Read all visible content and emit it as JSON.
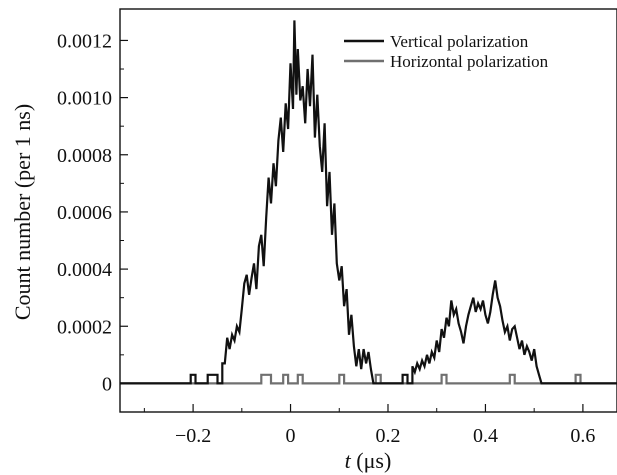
{
  "chart_data": {
    "type": "line",
    "title": "",
    "xlabel": "t (μs)",
    "xlabel_parts": {
      "var": "t",
      "unit": " (μs)"
    },
    "ylabel": "Count number (per 1 ns)",
    "xlim": [
      -0.35,
      0.67
    ],
    "ylim": [
      -0.0001,
      0.00131
    ],
    "x_ticks": [
      -0.2,
      0,
      0.2,
      0.4,
      0.6
    ],
    "x_tick_labels": [
      "−0.2",
      "0",
      "0.2",
      "0.4",
      "0.6"
    ],
    "x_minor_ticks": [
      -0.3,
      -0.1,
      0.1,
      0.3,
      0.5
    ],
    "y_ticks": [
      0,
      0.0002,
      0.0004,
      0.0006,
      0.0008,
      0.001,
      0.0012
    ],
    "y_tick_labels": [
      "0",
      "0.0002",
      "0.0004",
      "0.0006",
      "0.0008",
      "0.0010",
      "0.0012"
    ],
    "grid": false,
    "legend_position": "top-right",
    "series": [
      {
        "name": "Vertical polarization",
        "color": "#111111",
        "style": "step",
        "points": [
          [
            -0.35,
            0
          ],
          [
            -0.205,
            0
          ],
          [
            -0.205,
            3e-05
          ],
          [
            -0.195,
            3e-05
          ],
          [
            -0.195,
            0
          ],
          [
            -0.17,
            0
          ],
          [
            -0.17,
            3e-05
          ],
          [
            -0.15,
            3e-05
          ],
          [
            -0.15,
            0
          ],
          [
            -0.14,
            0
          ],
          [
            -0.14,
            7e-05
          ],
          [
            -0.135,
            7e-05
          ],
          [
            -0.13,
            0.00016
          ],
          [
            -0.125,
            0.00012
          ],
          [
            -0.12,
            0.00017
          ],
          [
            -0.115,
            0.00015
          ],
          [
            -0.11,
            0.0002
          ],
          [
            -0.105,
            0.00018
          ],
          [
            -0.1,
            0.00026
          ],
          [
            -0.095,
            0.00035
          ],
          [
            -0.09,
            0.00038
          ],
          [
            -0.085,
            0.00031
          ],
          [
            -0.08,
            0.00037
          ],
          [
            -0.075,
            0.00042
          ],
          [
            -0.07,
            0.00033
          ],
          [
            -0.065,
            0.00048
          ],
          [
            -0.06,
            0.00052
          ],
          [
            -0.055,
            0.00041
          ],
          [
            -0.05,
            0.00058
          ],
          [
            -0.045,
            0.00072
          ],
          [
            -0.04,
            0.00063
          ],
          [
            -0.035,
            0.00077
          ],
          [
            -0.03,
            0.00069
          ],
          [
            -0.025,
            0.00085
          ],
          [
            -0.02,
            0.00093
          ],
          [
            -0.015,
            0.00081
          ],
          [
            -0.01,
            0.00098
          ],
          [
            -0.005,
            0.00089
          ],
          [
            0,
            0.00112
          ],
          [
            0.005,
            0.00096
          ],
          [
            0.008,
            0.00127
          ],
          [
            0.012,
            0.00101
          ],
          [
            0.015,
            0.00117
          ],
          [
            0.02,
            0.00099
          ],
          [
            0.025,
            0.00104
          ],
          [
            0.03,
            0.00091
          ],
          [
            0.035,
            0.0011
          ],
          [
            0.04,
            0.00097
          ],
          [
            0.045,
            0.00115
          ],
          [
            0.05,
            0.00086
          ],
          [
            0.055,
            0.00101
          ],
          [
            0.06,
            0.00083
          ],
          [
            0.065,
            0.00074
          ],
          [
            0.07,
            0.00091
          ],
          [
            0.075,
            0.00062
          ],
          [
            0.08,
            0.00074
          ],
          [
            0.085,
            0.00052
          ],
          [
            0.09,
            0.00063
          ],
          [
            0.095,
            0.00042
          ],
          [
            0.1,
            0.00036
          ],
          [
            0.105,
            0.00041
          ],
          [
            0.11,
            0.00027
          ],
          [
            0.115,
            0.00033
          ],
          [
            0.12,
            0.00017
          ],
          [
            0.125,
            0.00024
          ],
          [
            0.13,
            0.00013
          ],
          [
            0.135,
            6e-05
          ],
          [
            0.14,
            0.00012
          ],
          [
            0.145,
            5e-05
          ],
          [
            0.15,
            0.00012
          ],
          [
            0.155,
            7e-05
          ],
          [
            0.16,
            0.00011
          ],
          [
            0.165,
            5e-05
          ],
          [
            0.17,
            0
          ],
          [
            0.23,
            0
          ],
          [
            0.23,
            3e-05
          ],
          [
            0.24,
            3e-05
          ],
          [
            0.24,
            0
          ],
          [
            0.25,
            0
          ],
          [
            0.25,
            6e-05
          ],
          [
            0.255,
            4e-05
          ],
          [
            0.26,
            7e-05
          ],
          [
            0.265,
            5e-05
          ],
          [
            0.27,
            8e-05
          ],
          [
            0.275,
            6e-05
          ],
          [
            0.28,
            0.0001
          ],
          [
            0.285,
            7e-05
          ],
          [
            0.29,
            0.00011
          ],
          [
            0.295,
            9e-05
          ],
          [
            0.3,
            0.00015
          ],
          [
            0.305,
            0.00011
          ],
          [
            0.31,
            0.00019
          ],
          [
            0.315,
            0.00016
          ],
          [
            0.32,
            0.00023
          ],
          [
            0.325,
            0.0002
          ],
          [
            0.33,
            0.00029
          ],
          [
            0.335,
            0.00024
          ],
          [
            0.34,
            0.00026
          ],
          [
            0.345,
            0.00021
          ],
          [
            0.35,
            0.00018
          ],
          [
            0.355,
            0.00014
          ],
          [
            0.36,
            0.0002
          ],
          [
            0.365,
            0.00024
          ],
          [
            0.37,
            0.00027
          ],
          [
            0.375,
            0.0003
          ],
          [
            0.38,
            0.00025
          ],
          [
            0.385,
            0.00028
          ],
          [
            0.39,
            0.00026
          ],
          [
            0.395,
            0.00029
          ],
          [
            0.4,
            0.00024
          ],
          [
            0.405,
            0.00021
          ],
          [
            0.41,
            0.00025
          ],
          [
            0.415,
            0.00031
          ],
          [
            0.42,
            0.00036
          ],
          [
            0.425,
            0.0003
          ],
          [
            0.43,
            0.00027
          ],
          [
            0.435,
            0.00022
          ],
          [
            0.44,
            0.00018
          ],
          [
            0.445,
            0.0002
          ],
          [
            0.45,
            0.00015
          ],
          [
            0.455,
            0.00019
          ],
          [
            0.46,
            0.0002
          ],
          [
            0.465,
            0.00016
          ],
          [
            0.47,
            0.00012
          ],
          [
            0.475,
            0.00015
          ],
          [
            0.48,
            0.0001
          ],
          [
            0.485,
            0.00013
          ],
          [
            0.49,
            0.00011
          ],
          [
            0.495,
            8e-05
          ],
          [
            0.5,
            0.00012
          ],
          [
            0.505,
            6e-05
          ],
          [
            0.51,
            3e-05
          ],
          [
            0.515,
            0
          ],
          [
            0.67,
            0
          ]
        ]
      },
      {
        "name": "Horizontal polarization",
        "color": "#707070",
        "style": "step",
        "points": [
          [
            -0.35,
            0
          ],
          [
            -0.06,
            0
          ],
          [
            -0.06,
            3e-05
          ],
          [
            -0.04,
            3e-05
          ],
          [
            -0.04,
            0
          ],
          [
            -0.015,
            0
          ],
          [
            -0.015,
            3e-05
          ],
          [
            -0.005,
            3e-05
          ],
          [
            -0.005,
            0
          ],
          [
            0.015,
            0
          ],
          [
            0.015,
            3e-05
          ],
          [
            0.025,
            3e-05
          ],
          [
            0.025,
            0
          ],
          [
            0.1,
            0
          ],
          [
            0.1,
            3e-05
          ],
          [
            0.11,
            3e-05
          ],
          [
            0.11,
            0
          ],
          [
            0.175,
            0
          ],
          [
            0.175,
            3e-05
          ],
          [
            0.185,
            3e-05
          ],
          [
            0.185,
            0
          ],
          [
            0.31,
            0
          ],
          [
            0.31,
            3e-05
          ],
          [
            0.32,
            3e-05
          ],
          [
            0.32,
            0
          ],
          [
            0.45,
            0
          ],
          [
            0.45,
            3e-05
          ],
          [
            0.46,
            3e-05
          ],
          [
            0.46,
            0
          ],
          [
            0.585,
            0
          ],
          [
            0.585,
            3e-05
          ],
          [
            0.595,
            3e-05
          ],
          [
            0.595,
            0
          ],
          [
            0.67,
            0
          ]
        ]
      }
    ]
  }
}
